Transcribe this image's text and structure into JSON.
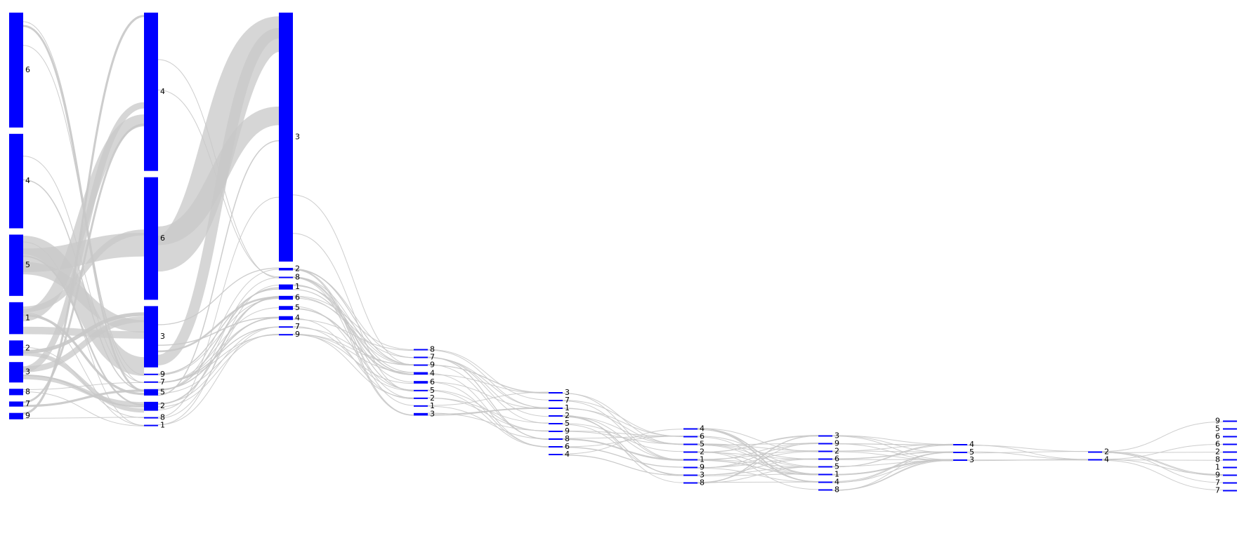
{
  "colors": {
    "node": "#0000ff",
    "link": "#c8c8c8",
    "background": "#ffffff"
  },
  "diagram": {
    "type": "sankey",
    "stages": [
      {
        "nodes": [
          {
            "label": "6",
            "value": 90
          },
          {
            "label": "4",
            "value": 74
          },
          {
            "label": "5",
            "value": 48
          },
          {
            "label": "1",
            "value": 25
          },
          {
            "label": "2",
            "value": 12
          },
          {
            "label": "3",
            "value": 16
          },
          {
            "label": "8",
            "value": 5
          },
          {
            "label": "7",
            "value": 4
          },
          {
            "label": "9",
            "value": 5
          }
        ]
      },
      {
        "nodes": [
          {
            "label": "4",
            "value": 124
          },
          {
            "label": "6",
            "value": 96
          },
          {
            "label": "3",
            "value": 48
          },
          {
            "label": "9",
            "value": 1
          },
          {
            "label": "7",
            "value": 1
          },
          {
            "label": "5",
            "value": 5
          },
          {
            "label": "2",
            "value": 7
          },
          {
            "label": "8",
            "value": 1
          },
          {
            "label": "1",
            "value": 1
          }
        ]
      },
      {
        "nodes": [
          {
            "label": "3",
            "value": 195
          },
          {
            "label": "2",
            "value": 2
          },
          {
            "label": "8",
            "value": 1
          },
          {
            "label": "1",
            "value": 4
          },
          {
            "label": "6",
            "value": 3
          },
          {
            "label": "5",
            "value": 3
          },
          {
            "label": "4",
            "value": 3
          },
          {
            "label": "7",
            "value": 1
          },
          {
            "label": "9",
            "value": 1
          }
        ]
      },
      {
        "nodes": [
          {
            "label": "8",
            "value": 1
          },
          {
            "label": "7",
            "value": 1
          },
          {
            "label": "9",
            "value": 1
          },
          {
            "label": "4",
            "value": 2
          },
          {
            "label": "6",
            "value": 2
          },
          {
            "label": "5",
            "value": 1
          },
          {
            "label": "2",
            "value": 1
          },
          {
            "label": "1",
            "value": 1
          },
          {
            "label": "3",
            "value": 2
          }
        ]
      },
      {
        "nodes": [
          {
            "label": "3",
            "value": 1
          },
          {
            "label": "7",
            "value": 1
          },
          {
            "label": "1",
            "value": 1
          },
          {
            "label": "2",
            "value": 1
          },
          {
            "label": "5",
            "value": 1
          },
          {
            "label": "9",
            "value": 1
          },
          {
            "label": "8",
            "value": 1
          },
          {
            "label": "6",
            "value": 1
          },
          {
            "label": "4",
            "value": 1
          }
        ]
      },
      {
        "nodes": [
          {
            "label": "4",
            "value": 1
          },
          {
            "label": "6",
            "value": 1
          },
          {
            "label": "5",
            "value": 1
          },
          {
            "label": "2",
            "value": 1
          },
          {
            "label": "1",
            "value": 1
          },
          {
            "label": "9",
            "value": 1
          },
          {
            "label": "3",
            "value": 1
          },
          {
            "label": "8",
            "value": 1
          }
        ]
      },
      {
        "nodes": [
          {
            "label": "3",
            "value": 1
          },
          {
            "label": "9",
            "value": 1
          },
          {
            "label": "2",
            "value": 1
          },
          {
            "label": "6",
            "value": 1
          },
          {
            "label": "5",
            "value": 1
          },
          {
            "label": "1",
            "value": 1
          },
          {
            "label": "4",
            "value": 1
          },
          {
            "label": "8",
            "value": 1
          }
        ]
      },
      {
        "nodes": [
          {
            "label": "4",
            "value": 1
          },
          {
            "label": "5",
            "value": 1
          },
          {
            "label": "3",
            "value": 1
          }
        ]
      },
      {
        "nodes": [
          {
            "label": "2",
            "value": 1
          },
          {
            "label": "4",
            "value": 1
          }
        ]
      },
      {
        "nodes": [
          {
            "label": "9",
            "value": 1
          },
          {
            "label": "5",
            "value": 1
          },
          {
            "label": "6",
            "value": 1
          },
          {
            "label": "6",
            "value": 1
          },
          {
            "label": "2",
            "value": 1
          },
          {
            "label": "8",
            "value": 1
          },
          {
            "label": "1",
            "value": 1
          },
          {
            "label": "9",
            "value": 1
          },
          {
            "label": "7",
            "value": 1
          },
          {
            "label": "7",
            "value": 1
          }
        ]
      }
    ]
  }
}
